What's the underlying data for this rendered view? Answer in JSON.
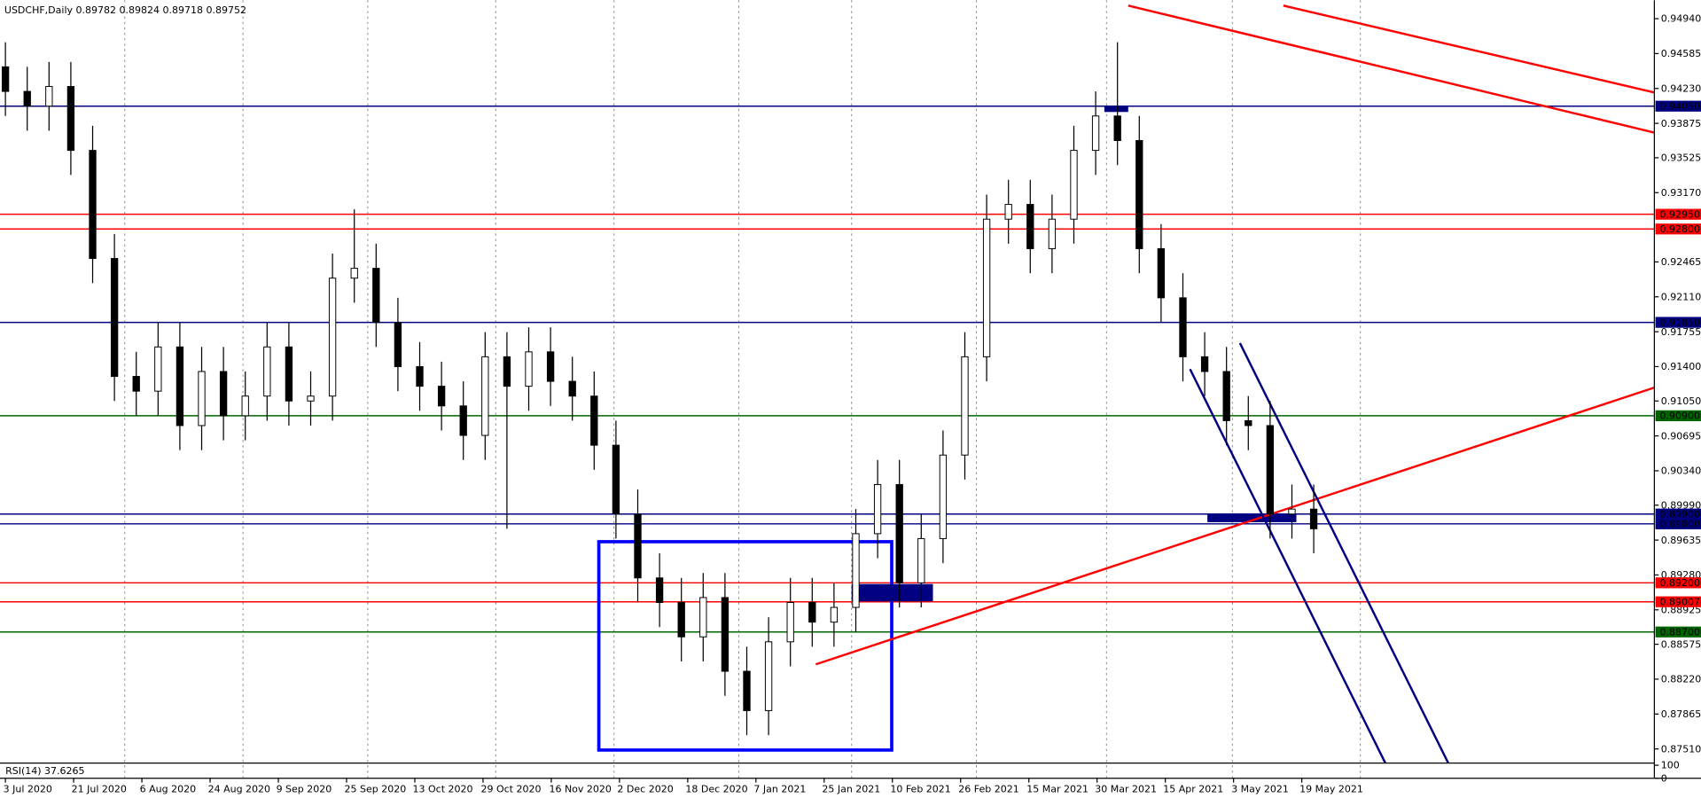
{
  "chart_data": {
    "type": "candlestick",
    "title": "USDCHF,Daily  0.89782 0.89824 0.89718 0.89752",
    "ylim": [
      0.87366,
      0.95128
    ],
    "yticks": [
      {
        "value": 0.9494,
        "label": "0.94940"
      },
      {
        "value": 0.94585,
        "label": "0.94585"
      },
      {
        "value": 0.9423,
        "label": "0.94230"
      },
      {
        "value": 0.93875,
        "label": "0.93875"
      },
      {
        "value": 0.93525,
        "label": "0.93525"
      },
      {
        "value": 0.9317,
        "label": "0.93170"
      },
      {
        "value": 0.92465,
        "label": "0.92465"
      },
      {
        "value": 0.9211,
        "label": "0.92110"
      },
      {
        "value": 0.91755,
        "label": "0.91755"
      },
      {
        "value": 0.914,
        "label": "0.91400"
      },
      {
        "value": 0.9105,
        "label": "0.91050"
      },
      {
        "value": 0.90695,
        "label": "0.90695"
      },
      {
        "value": 0.9034,
        "label": "0.90340"
      },
      {
        "value": 0.8999,
        "label": "0.89990"
      },
      {
        "value": 0.89635,
        "label": "0.89635"
      },
      {
        "value": 0.8928,
        "label": "0.89280"
      },
      {
        "value": 0.88925,
        "label": "0.88925"
      },
      {
        "value": 0.88575,
        "label": "0.88575"
      },
      {
        "value": 0.8822,
        "label": "0.88220"
      },
      {
        "value": 0.87865,
        "label": "0.87865"
      },
      {
        "value": 0.8751,
        "label": "0.87510"
      }
    ],
    "x_labels": [
      "3 Jul 2020",
      "21 Jul 2020",
      "6 Aug 2020",
      "24 Aug 2020",
      "9 Sep 2020",
      "25 Sep 2020",
      "13 Oct 2020",
      "29 Oct 2020",
      "16 Nov 2020",
      "2 Dec 2020",
      "18 Dec 2020",
      "7 Jan 2021",
      "25 Jan 2021",
      "10 Feb 2021",
      "26 Feb 2021",
      "15 Mar 2021",
      "30 Mar 2021",
      "15 Apr 2021",
      "3 May 2021",
      "19 May 2021"
    ],
    "levels": [
      {
        "value": 0.9405,
        "label": "0.94050",
        "color": "#000080"
      },
      {
        "value": 0.9295,
        "label": "0.92950",
        "color": "#ff0000"
      },
      {
        "value": 0.928,
        "label": "0.92800",
        "color": "#ff0000"
      },
      {
        "value": 0.9185,
        "label": "0.91850",
        "color": "#000080"
      },
      {
        "value": 0.909,
        "label": "0.90900",
        "color": "#006400"
      },
      {
        "value": 0.899,
        "label": "0.89900",
        "color": "#000080"
      },
      {
        "value": 0.898,
        "label": "0.89800",
        "color": "#000080"
      },
      {
        "value": 0.892,
        "label": "0.89200",
        "color": "#ff0000"
      },
      {
        "value": 0.89007,
        "label": "0.89007",
        "color": "#ff0000"
      },
      {
        "value": 0.887,
        "label": "0.88700",
        "color": "#006400"
      }
    ],
    "open": [
      0.9445,
      0.942,
      0.9405,
      0.9425,
      0.936,
      0.925,
      0.913,
      0.9115,
      0.916,
      0.908,
      0.9135,
      0.909,
      0.911,
      0.916,
      0.9105,
      0.911,
      0.923,
      0.924,
      0.9185,
      0.914,
      0.912,
      0.91,
      0.907,
      0.915,
      0.912,
      0.9155,
      0.9125,
      0.911,
      0.906,
      0.899,
      0.8925,
      0.89,
      0.8865,
      0.8905,
      0.883,
      0.879,
      0.886,
      0.89,
      0.888,
      0.8895,
      0.897,
      0.902,
      0.892,
      0.8965,
      0.905,
      0.915,
      0.929,
      0.9305,
      0.926,
      0.929,
      0.936,
      0.9395,
      0.937,
      0.926,
      0.921,
      0.915,
      0.9135,
      0.9085,
      0.908,
      0.899,
      0.8995
    ],
    "high": [
      0.947,
      0.9445,
      0.945,
      0.945,
      0.9385,
      0.9275,
      0.9155,
      0.9185,
      0.9185,
      0.916,
      0.916,
      0.9135,
      0.9185,
      0.9185,
      0.9135,
      0.9255,
      0.93,
      0.9265,
      0.921,
      0.9165,
      0.9145,
      0.9125,
      0.9175,
      0.9175,
      0.918,
      0.918,
      0.915,
      0.9135,
      0.9085,
      0.9015,
      0.895,
      0.8925,
      0.893,
      0.893,
      0.8855,
      0.8885,
      0.8925,
      0.8925,
      0.892,
      0.8995,
      0.9045,
      0.9045,
      0.899,
      0.9075,
      0.9175,
      0.9315,
      0.933,
      0.933,
      0.9315,
      0.9385,
      0.942,
      0.947,
      0.9395,
      0.9285,
      0.9235,
      0.9175,
      0.916,
      0.911,
      0.9105,
      0.902,
      0.902
    ],
    "low": [
      0.9395,
      0.938,
      0.938,
      0.9335,
      0.9225,
      0.9105,
      0.909,
      0.909,
      0.9055,
      0.9055,
      0.9065,
      0.9065,
      0.9085,
      0.908,
      0.908,
      0.9085,
      0.9205,
      0.916,
      0.9115,
      0.9095,
      0.9075,
      0.9045,
      0.9045,
      0.8975,
      0.9095,
      0.91,
      0.9085,
      0.9035,
      0.8965,
      0.89,
      0.8875,
      0.884,
      0.884,
      0.8805,
      0.8765,
      0.8765,
      0.8835,
      0.8855,
      0.8855,
      0.887,
      0.8945,
      0.8895,
      0.8895,
      0.894,
      0.9025,
      0.9125,
      0.9265,
      0.9235,
      0.9235,
      0.9265,
      0.9335,
      0.9345,
      0.9235,
      0.9185,
      0.9125,
      0.911,
      0.906,
      0.9055,
      0.8965,
      0.8965,
      0.895
    ],
    "close": [
      0.942,
      0.9405,
      0.9425,
      0.936,
      0.925,
      0.913,
      0.9115,
      0.916,
      0.908,
      0.9135,
      0.909,
      0.911,
      0.916,
      0.9105,
      0.911,
      0.923,
      0.924,
      0.9185,
      0.914,
      0.912,
      0.91,
      0.907,
      0.915,
      0.912,
      0.9155,
      0.9125,
      0.911,
      0.906,
      0.899,
      0.8925,
      0.89,
      0.8865,
      0.8905,
      0.883,
      0.879,
      0.886,
      0.89,
      0.888,
      0.8895,
      0.897,
      0.902,
      0.892,
      0.8965,
      0.905,
      0.915,
      0.929,
      0.9305,
      0.926,
      0.929,
      0.936,
      0.9395,
      0.937,
      0.926,
      0.921,
      0.915,
      0.9135,
      0.9085,
      0.908,
      0.899,
      0.8995,
      0.8975
    ],
    "rsi_label": "RSI(14) 37.6265",
    "rsi_ylim": [
      0,
      100
    ],
    "rsi_yticks": [
      100,
      0
    ]
  }
}
